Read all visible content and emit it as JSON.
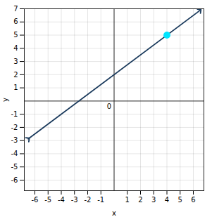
{
  "chart_data": {
    "type": "line",
    "xlabel": "x",
    "ylabel": "y",
    "xlim": [
      -6.8,
      6.8
    ],
    "ylim": [
      -6.8,
      7
    ],
    "xticks": [
      -6,
      -5,
      -4,
      -3,
      -2,
      -1,
      1,
      2,
      3,
      4,
      5,
      6
    ],
    "yticks": [
      -6,
      -5,
      -4,
      -3,
      -2,
      -1,
      1,
      2,
      3,
      4,
      5,
      6,
      7
    ],
    "grid": true,
    "series": [
      {
        "type": "line",
        "color": "#1a3a5c",
        "x": [
          -6.5,
          6.5
        ],
        "values": [
          -2.875,
          6.875
        ]
      },
      {
        "type": "scatter",
        "color": "#00e5ff",
        "x": [
          4
        ],
        "values": [
          5
        ]
      }
    ],
    "annotations": [
      {
        "text": "0",
        "x": 0,
        "y": 0
      }
    ]
  }
}
